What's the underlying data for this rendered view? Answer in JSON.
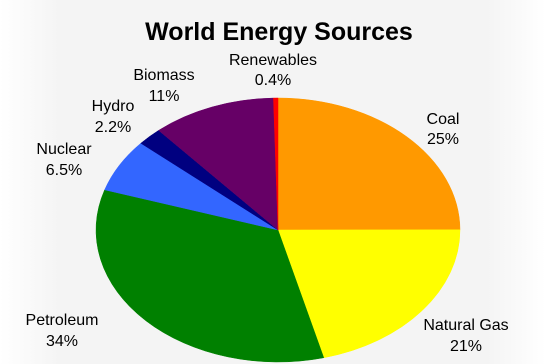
{
  "chart_data": {
    "type": "pie",
    "title": "World Energy Sources",
    "slices": [
      {
        "label": "Coal",
        "value_text": "25%",
        "value": 25,
        "color": "#ff9900"
      },
      {
        "label": "Natural Gas",
        "value_text": "21%",
        "value": 21,
        "color": "#ffff00"
      },
      {
        "label": "Petroleum",
        "value_text": "34%",
        "value": 34,
        "color": "#008000"
      },
      {
        "label": "Nuclear",
        "value_text": "6.5%",
        "value": 6.5,
        "color": "#3366ff"
      },
      {
        "label": "Hydro",
        "value_text": "2.2%",
        "value": 2.2,
        "color": "#000080"
      },
      {
        "label": "Biomass",
        "value_text": "11%",
        "value": 11,
        "color": "#660066"
      },
      {
        "label": "Renewables",
        "value_text": "0.4%",
        "value": 0.4,
        "color": "#ff0000"
      }
    ]
  }
}
